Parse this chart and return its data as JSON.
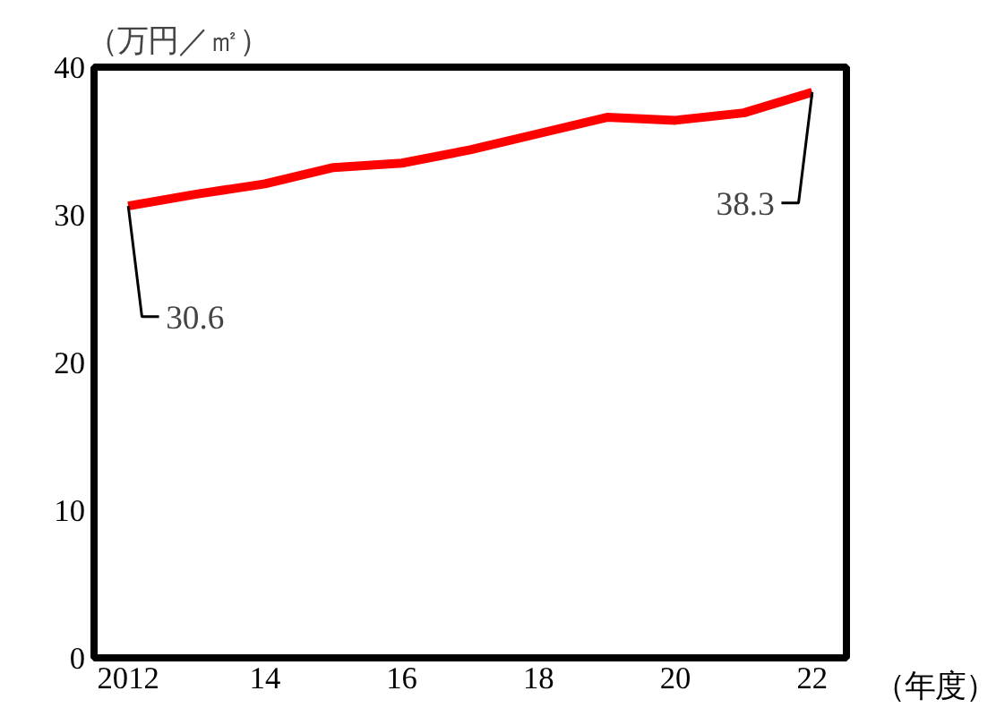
{
  "chart_data": {
    "type": "line",
    "xlabel": "（年度）",
    "ylabel": "（万円／㎡）",
    "x": [
      2012,
      2013,
      2014,
      2015,
      2016,
      2017,
      2018,
      2019,
      2020,
      2021,
      2022
    ],
    "series": [
      {
        "color": "#ff0000",
        "values": [
          30.6,
          31.4,
          32.1,
          33.2,
          33.5,
          34.4,
          35.5,
          36.6,
          36.4,
          36.9,
          38.3
        ]
      }
    ],
    "xlim": [
      2011.5,
      2022.5
    ],
    "xticks": [
      {
        "value": 2012,
        "label": "2012"
      },
      {
        "value": 2014,
        "label": "14"
      },
      {
        "value": 2016,
        "label": "16"
      },
      {
        "value": 2018,
        "label": "18"
      },
      {
        "value": 2020,
        "label": "20"
      },
      {
        "value": 2022,
        "label": "22"
      }
    ],
    "ylim": [
      0,
      40
    ],
    "yticks": [
      0,
      10,
      20,
      30,
      40
    ],
    "annotations": [
      {
        "text": "30.6",
        "x": 2012,
        "y": 30.6
      },
      {
        "text": "38.3",
        "x": 2022,
        "y": 38.3
      }
    ],
    "grid": false,
    "marker": "none",
    "line_style": "solid"
  }
}
